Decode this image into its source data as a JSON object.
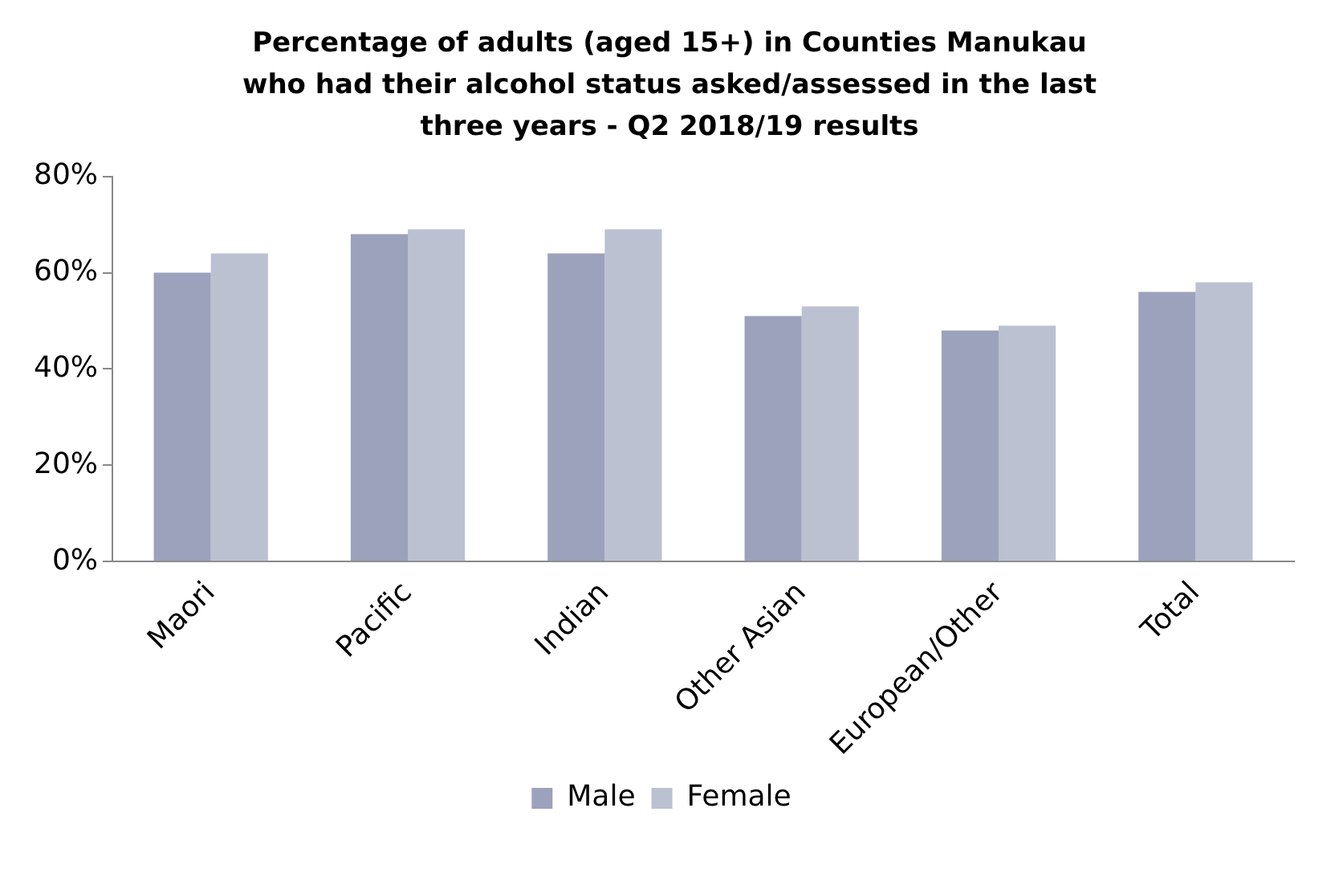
{
  "chart_data": {
    "type": "bar",
    "title": "Percentage of adults (aged 15+)  in Counties Manukau who had their alcohol status asked/assessed in the last three years - Q2 2018/19 results",
    "categories": [
      "Maori",
      "Pacific",
      "Indian",
      "Other Asian",
      "European/Other",
      "Total"
    ],
    "series": [
      {
        "name": "Male",
        "color": "#9ca2bb",
        "values": [
          60,
          68,
          64,
          51,
          48,
          56
        ]
      },
      {
        "name": "Female",
        "color": "#bcc1d2",
        "values": [
          64,
          69,
          69,
          53,
          49,
          58
        ]
      }
    ],
    "ylim": [
      0,
      80
    ],
    "yticks": [
      {
        "value": 0,
        "label": "0%"
      },
      {
        "value": 20,
        "label": "20%"
      },
      {
        "value": 40,
        "label": "40%"
      },
      {
        "value": 60,
        "label": "60%"
      },
      {
        "value": 80,
        "label": "80%"
      }
    ],
    "grid": false,
    "legend": "bottom"
  }
}
